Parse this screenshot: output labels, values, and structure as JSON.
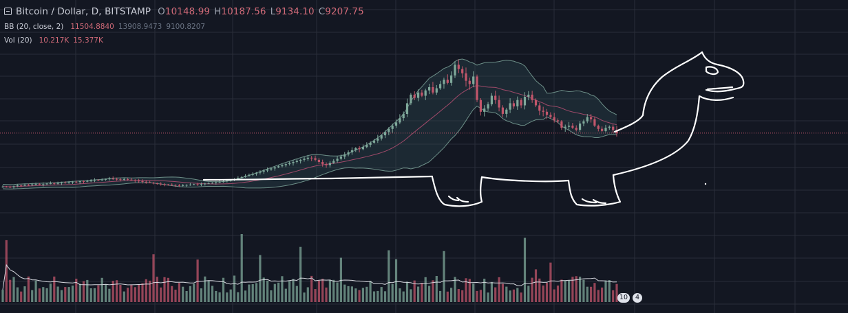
{
  "legend": {
    "symbol": "Bitcoin / Dollar, D, BITSTAMP",
    "o_label": "O",
    "o_value": "10148.99",
    "h_label": "H",
    "h_value": "10187.56",
    "l_label": "L",
    "l_value": "9134.10",
    "c_label": "C",
    "c_value": "9207.75",
    "bb_label": "BB (20, close, 2)",
    "bb_basis": "11504.8840",
    "bb_upper": "13908.9473",
    "bb_lower": "9100.8207",
    "vol_label": "Vol (20)",
    "vol_value": "10.217K",
    "vol_ma": "15.377K"
  },
  "badges": {
    "a": "10",
    "b": "4"
  },
  "colors": {
    "background": "#131722",
    "grid": "#2a2e39",
    "up": "#7fa89a",
    "down": "#c2566b",
    "bb_band": "#6d8f88",
    "bb_basis": "#a04a6a",
    "price_line": "#c2566b",
    "drawing": "#ffffff"
  },
  "chart_data": {
    "type": "candlestick",
    "symbol": "Bitcoin / Dollar",
    "interval": "D",
    "exchange": "BITSTAMP",
    "last_bar": {
      "open": 10148.99,
      "high": 10187.56,
      "low": 9134.1,
      "close": 9207.75
    },
    "indicators": {
      "bollinger_bands": {
        "length": 20,
        "source": "close",
        "mult": 2,
        "basis": 11504.884,
        "upper": 13908.9473,
        "lower": 9100.8207
      },
      "volume": {
        "length": 20,
        "value": "10.217K",
        "ma": "15.377K"
      }
    },
    "closes": [
      4200,
      4180,
      4150,
      4230,
      4300,
      4280,
      4350,
      4320,
      4400,
      4450,
      4380,
      4420,
      4480,
      4500,
      4460,
      4520,
      4580,
      4550,
      4600,
      4650,
      4620,
      4700,
      4680,
      4720,
      4760,
      4820,
      4790,
      4850,
      4900,
      4950,
      4920,
      4880,
      4860,
      4900,
      4850,
      4800,
      4750,
      4700,
      4650,
      4600,
      4550,
      4500,
      4470,
      4430,
      4400,
      4380,
      4350,
      4330,
      4300,
      4320,
      4350,
      4380,
      4420,
      4400,
      4450,
      4480,
      4520,
      4550,
      4600,
      4620,
      4700,
      4750,
      4800,
      4900,
      5000,
      5100,
      5200,
      5300,
      5400,
      5500,
      5600,
      5700,
      5800,
      5900,
      6000,
      6100,
      6200,
      6300,
      6400,
      6500,
      6600,
      6700,
      6800,
      6900,
      6850,
      6700,
      6500,
      6300,
      6200,
      6400,
      6600,
      6800,
      7000,
      7200,
      7400,
      7600,
      7800,
      7700,
      7900,
      8100,
      8300,
      8500,
      8700,
      9000,
      9300,
      9600,
      9900,
      10200,
      10600,
      11000,
      12000,
      12800,
      12500,
      13000,
      12700,
      13200,
      13500,
      13000,
      13400,
      13800,
      14200,
      13900,
      14600,
      15600,
      15200,
      14800,
      14100,
      13800,
      14500,
      12300,
      11200,
      11500,
      11900,
      12700,
      12300,
      11600,
      11000,
      11400,
      12000,
      11700,
      12300,
      11800,
      12600,
      12800,
      12300,
      11800,
      11300,
      11200,
      10900,
      10700,
      10400,
      10300,
      9700,
      9800,
      9900,
      9700,
      9500,
      10100,
      10300,
      10700,
      10500,
      9900,
      9600,
      9400,
      9700,
      9800,
      9500,
      9207.75
    ]
  }
}
